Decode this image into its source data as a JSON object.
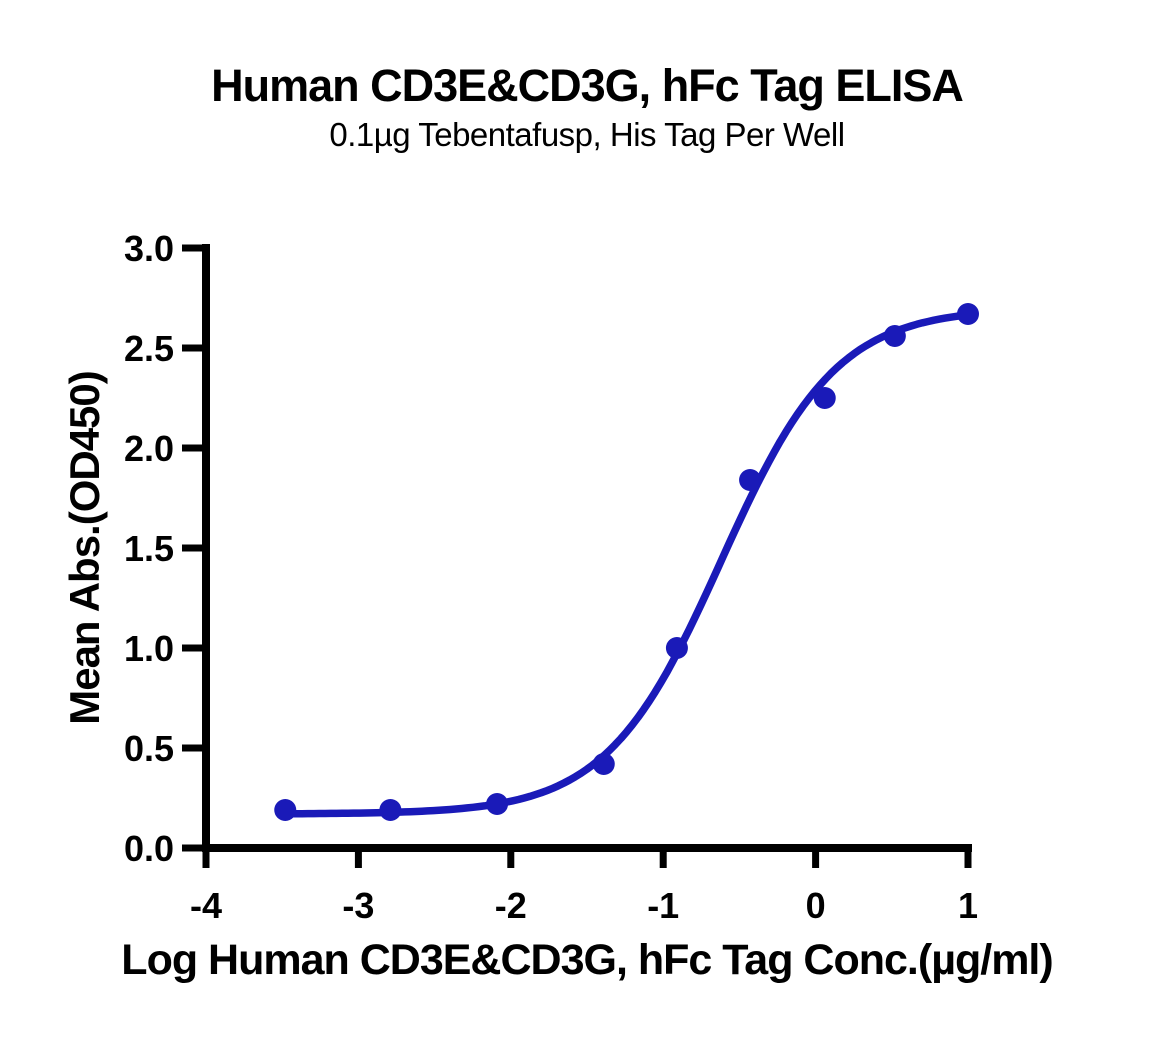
{
  "chart": {
    "title": "Human CD3E&CD3G, hFc Tag ELISA",
    "subtitle": "0.1µg Tebentafusp, His Tag Per Well",
    "xlabel": "Log Human CD3E&CD3G, hFc Tag Conc.(µg/ml)",
    "ylabel": "Mean Abs.(OD450)"
  },
  "chart_data": {
    "type": "scatter",
    "title": "Human CD3E&CD3G, hFc Tag ELISA",
    "subtitle": "0.1µg Tebentafusp, His Tag Per Well",
    "xlabel": "Log Human CD3E&CD3G, hFc Tag Conc.(µg/ml)",
    "ylabel": "Mean Abs.(OD450)",
    "x": [
      -3.48,
      -2.79,
      -2.09,
      -1.39,
      -0.91,
      -0.43,
      0.06,
      0.52,
      1.0
    ],
    "y": [
      0.19,
      0.19,
      0.22,
      0.42,
      1.0,
      1.84,
      2.25,
      2.56,
      2.67
    ],
    "x_ticks": [
      -4,
      -3,
      -2,
      -1,
      0,
      1
    ],
    "y_ticks": [
      0.0,
      0.5,
      1.0,
      1.5,
      2.0,
      2.5,
      3.0
    ],
    "xlim": [
      -4,
      1
    ],
    "ylim": [
      0,
      3
    ],
    "y_tick_decimals": 1,
    "grid": false,
    "legend": false,
    "fit_curve": {
      "model": "4PL-sigmoid",
      "bottom": 0.17,
      "top": 2.7,
      "log_ec50": -0.62,
      "hill": 1.15,
      "x_start": -3.48,
      "x_end": 1.0
    },
    "colors": {
      "series": "#1a1ab8",
      "axis": "#000000",
      "text": "#000000",
      "background": "#ffffff"
    }
  }
}
